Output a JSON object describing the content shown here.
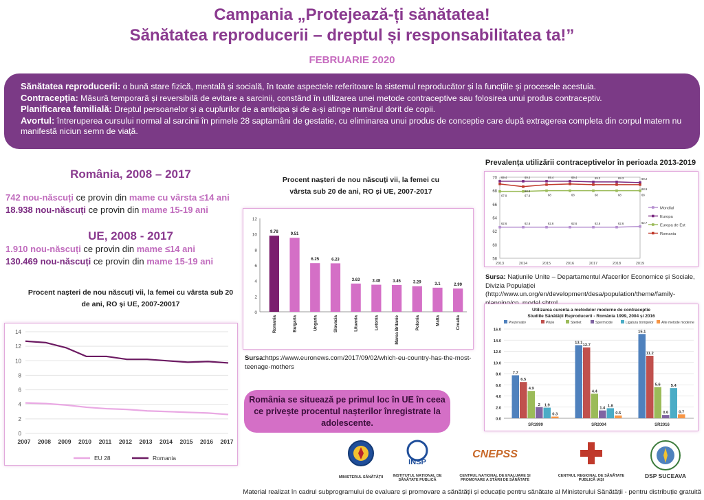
{
  "header": {
    "line1": "Campania „Protejează-ți sănătatea!",
    "line2": "Sănătatea reproducerii – dreptul și responsabilitatea ta!”",
    "date": "FEBRUARIE 2020"
  },
  "definitions": [
    {
      "term": "Sănătatea reproducerii:",
      "text": " o bună stare fizică, mentală și socială, în toate aspectele referitoare la sistemul reproducător și la funcțiile și procesele acestuia."
    },
    {
      "term": "Contracepția:",
      "text": " Măsură temporară și reversibilă de evitare a sarcinii, constând în utilizarea unei metode  contraceptive sau folosirea unui produs contraceptiv."
    },
    {
      "term": "Planificarea familială:",
      "text": " Dreptul persoanelor și a cuplurilor de a anticipa și de a-și atinge numărul dorit de copii."
    },
    {
      "term": "Avortul:",
      "text": "  întreruperea cursului normal al sarcinii în primele 28 saptamâni de gestatie, cu eliminarea unui produs de conceptie care după extragerea completa din corpul matern nu manifestă niciun semn de viață."
    }
  ],
  "romania_stats": {
    "heading": "România, 2008 – 2017",
    "l1_num": "742 nou-născuți",
    "l1_mid": " ce provin din ",
    "l1_tail": "mame cu vârsta ≤14 ani",
    "l2_num": "18.938 nou-născuți",
    "l2_mid": " ce provin din ",
    "l2_tail": "mame 15-19 ani"
  },
  "eu_stats": {
    "heading": "UE, 2008 - 2017",
    "l1_num": "1.910 nou-născuți",
    "l1_mid": " ce provin din ",
    "l1_tail": "mame ≤14 ani",
    "l2_num": "130.469 nou-născuți",
    "l2_mid": " ce provin din ",
    "l2_tail": "mame 15-19 ani"
  },
  "chart_line_title": "Procent nașteri de nou născuți vii, la femei cu vârsta sub 20 de ani, RO și UE, 2007-20017",
  "chart_bar_title": "Procent nașteri de nou născuți vii, la femei cu vârsta sub 20 de ani, RO și UE, 2007-2017",
  "chart_bar_source_label": "Sursa:",
  "chart_bar_source": "https://www.euronews.com/2017/09/02/which-eu-country-has-the-most-teenage-mothers",
  "chart_prev_title": "Prevalența utilizării contraceptivelor în perioada 2013-2019",
  "chart_prev_source_label": "Sursa:",
  "chart_prev_source": " Națiunile Unite – Departamentul Afacerilor Economice și Sociale, Divizia Populației (http://www.un.org/en/development/desa/population/theme/family-planning/cp_model.shtml",
  "chart_methods_title1": "Utilizarea curenta a metodelor moderne de contraceptie",
  "chart_methods_title2": "Studiile Sănătății Reproducerii - România 1999, 2004 și 2016",
  "highlight": "România se situează pe primul loc în UE în ceea ce privește procentul nașterilor înregistrate la adolescente.",
  "logos": [
    {
      "name": "MINISTERUL SĂNĂTĂȚII"
    },
    {
      "name": "INSTITUTUL NAȚIONAL DE SĂNĂTATE PUBLICĂ",
      "mark": "INSP"
    },
    {
      "name": "CENTRUL NAȚIONAL DE EVALUARE ȘI PROMOVARE A STĂRII DE SĂNĂTATE",
      "mark": "CNEPSS"
    },
    {
      "name": "CENTRUL REGIONAL DE SĂNĂTATE PUBLICĂ IAȘI"
    },
    {
      "name": "DSP SUCEAVA"
    }
  ],
  "footer": "Material realizat în cadrul subprogramului de evaluare și promovare a sănătății și educație pentru sănătate al Ministerului Sănătății - pentru distribuție gratuită",
  "colors": {
    "purple": "#7b3a86",
    "pink": "#c06bbd",
    "dark": "#7b2a81",
    "bar_ro": "#7b1f6e",
    "bar_other": "#d46fc6"
  },
  "chart_data": [
    {
      "type": "line",
      "x": [
        "2007",
        "2008",
        "2009",
        "2010",
        "2011",
        "2012",
        "2013",
        "2014",
        "2015",
        "2016",
        "2017"
      ],
      "ylim": [
        0,
        14
      ],
      "yticks": [
        "0",
        "2",
        "4",
        "6",
        "8",
        "10",
        "12",
        "14"
      ],
      "grid": true,
      "legend": "bottom",
      "series": [
        {
          "name": "EU 28",
          "color": "#e9a8e3",
          "values": [
            4.2,
            4.1,
            3.9,
            3.6,
            3.4,
            3.3,
            3.1,
            3.0,
            2.9,
            2.8,
            2.6
          ]
        },
        {
          "name": "Romania",
          "color": "#6c1a62",
          "values": [
            12.7,
            12.5,
            11.8,
            10.6,
            10.6,
            10.2,
            10.2,
            10.0,
            9.8,
            9.9,
            9.7
          ]
        }
      ]
    },
    {
      "type": "bar",
      "categories": [
        "Romania",
        "Bulgaria",
        "Ungaria",
        "Slovacia",
        "Lituania",
        "Letonia",
        "Marea Britanie",
        "Polonia",
        "Malta",
        "Croatia"
      ],
      "values": [
        9.78,
        9.51,
        6.25,
        6.23,
        3.63,
        3.48,
        3.45,
        3.29,
        3.1,
        2.99
      ],
      "labels": [
        "9.78",
        "9.51",
        "6.25",
        "6.23",
        "3.63",
        "3.48",
        "3.45",
        "3.29",
        "3.1",
        "2.99"
      ],
      "ylim": [
        0,
        12
      ],
      "yticks": [
        "0",
        "2",
        "4",
        "6",
        "8",
        "10",
        "12"
      ]
    },
    {
      "type": "line",
      "x": [
        "2013",
        "2014",
        "2015",
        "2016",
        "2017",
        "2018",
        "2019"
      ],
      "ylim": [
        58,
        70
      ],
      "yticks": [
        "58",
        "60",
        "62",
        "64",
        "66",
        "68",
        "70"
      ],
      "legend": "right",
      "series": [
        {
          "name": "Mondial",
          "color": "#b58fd0",
          "values": [
            62.6,
            62.6,
            62.6,
            62.6,
            62.6,
            62.6,
            62.7
          ],
          "labels": [
            "62.6",
            "62.6",
            "62.6",
            "62.6",
            "62.6",
            "62.6",
            "62.7"
          ]
        },
        {
          "name": "Europa",
          "color": "#7b2a81",
          "values": [
            69.4,
            69.4,
            69.4,
            69.4,
            69.3,
            69.3,
            69.2
          ],
          "labels": [
            "69.4",
            "69.4",
            "69.4",
            "69.4",
            "69.3",
            "69.3",
            "69.2"
          ]
        },
        {
          "name": "Europa de Est",
          "color": "#9bbb59",
          "values": [
            67.9,
            67.9,
            68,
            68,
            68,
            68,
            68
          ],
          "labels": [
            "67.9",
            "67.9",
            "68",
            "68",
            "68",
            "68",
            "68"
          ]
        },
        {
          "name": "Romania",
          "color": "#c0392b",
          "values": [
            69.0,
            68.6,
            68.9,
            69.0,
            68.9,
            68.9,
            68.9
          ],
          "labels": [
            "",
            "68.6",
            "",
            "",
            "",
            "",
            "68.9"
          ]
        }
      ]
    },
    {
      "type": "bar",
      "title": "Utilizarea curenta a metodelor moderne de contraceptie",
      "subtitle": "Studiile Sănătății Reproducerii - România 1999, 2004 și 2016",
      "categories": [
        "SR1999",
        "SR2004",
        "SR2016"
      ],
      "ylim": [
        0,
        16
      ],
      "yticks": [
        "0.0",
        "2.0",
        "4.0",
        "6.0",
        "8.0",
        "10.0",
        "12.0",
        "14.0",
        "16.0"
      ],
      "legend": "top",
      "series": [
        {
          "name": "Prezervativ",
          "color": "#4f81bd",
          "values": [
            7.7,
            13.1,
            15.1
          ]
        },
        {
          "name": "Pilule",
          "color": "#c0504d",
          "values": [
            6.5,
            12.7,
            11.2
          ]
        },
        {
          "name": "Sterilet",
          "color": "#9bbb59",
          "values": [
            4.9,
            4.4,
            5.6
          ]
        },
        {
          "name": "Spermicide",
          "color": "#8064a2",
          "values": [
            2.0,
            1.4,
            0.6
          ]
        },
        {
          "name": "Ligatura trompelor",
          "color": "#4bacc6",
          "values": [
            1.9,
            1.8,
            5.4
          ]
        },
        {
          "name": "Alte metode moderne",
          "color": "#f79646",
          "values": [
            0.3,
            0.5,
            0.7
          ]
        }
      ]
    }
  ]
}
